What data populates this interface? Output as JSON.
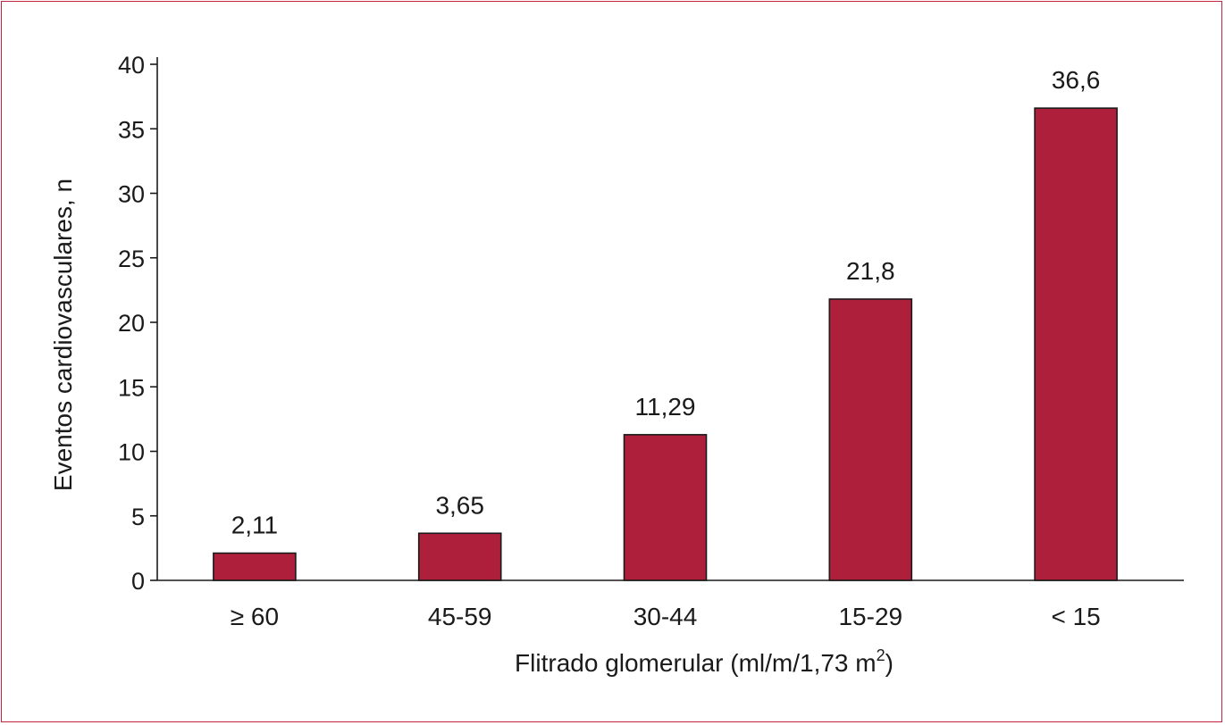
{
  "colors": {
    "bar": "#ae1f3c",
    "frame": "#c2263f",
    "axis": "#1a1a1a"
  },
  "chart_data": {
    "type": "bar",
    "categories": [
      "≥ 60",
      "45-59",
      "30-44",
      "15-29",
      "< 15"
    ],
    "values": [
      2.11,
      3.65,
      11.29,
      21.8,
      36.6
    ],
    "value_labels": [
      "2,11",
      "3,65",
      "11,29",
      "21,8",
      "36,6"
    ],
    "ylabel": "Eventos cardiovasculares, n",
    "xlabel_main": "Flitrado glomerular (ml/m/1,73 m",
    "xlabel_sup": "2",
    "xlabel_close": ")",
    "ylim": [
      0,
      40
    ],
    "yticks": [
      0,
      5,
      10,
      15,
      20,
      25,
      30,
      35,
      40
    ],
    "grid": false,
    "legend": "none"
  }
}
